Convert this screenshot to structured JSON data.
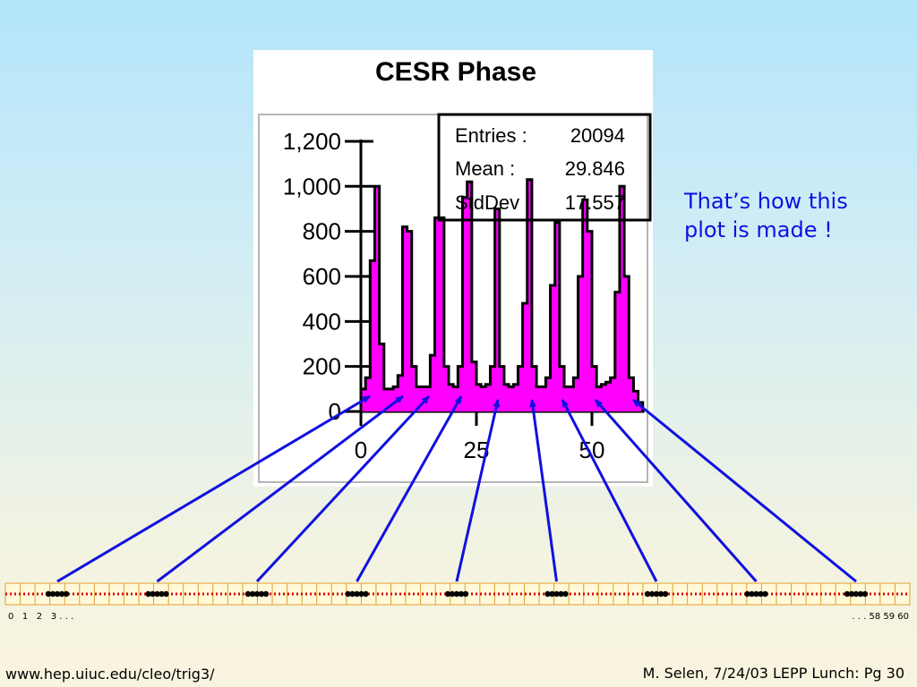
{
  "annotation": {
    "line1": "That’s how this",
    "line2": "plot is made !"
  },
  "bucket_strip": {
    "left_label": "0   1   2   3 . . .",
    "right_label": ". . . 58 59 60",
    "filled_groups": 9
  },
  "footer": {
    "url": "www.hep.uiuc.edu/cleo/trig3/",
    "credit": "M. Selen, 7/24/03 LEPP Lunch: Pg 30"
  },
  "colors": {
    "histogram_fill": "#ff00ff",
    "arrow": "#1010e0",
    "annotation_text": "#1010e0",
    "bucket_fill": "#fff9d9",
    "bucket_dot": "#dd0000"
  },
  "chart_data": {
    "type": "bar",
    "title": "CESR Phase",
    "stats": [
      {
        "label": "Entries :",
        "value": "20094"
      },
      {
        "label": "Mean :",
        "value": "29.846"
      },
      {
        "label": "StdDev :",
        "value": "17.557"
      }
    ],
    "xlim": [
      0,
      61
    ],
    "ylim": [
      0,
      1200
    ],
    "x_ticks": [
      0,
      25,
      50
    ],
    "y_ticks": [
      0,
      200,
      400,
      600,
      800,
      1000,
      1200
    ],
    "y_tick_labels": [
      "0",
      "200",
      "400",
      "600",
      "800",
      "1,000",
      "1,200"
    ],
    "grid": false,
    "legend": "top-right stats box",
    "bins": [
      {
        "x": 0,
        "y": 100
      },
      {
        "x": 1,
        "y": 150
      },
      {
        "x": 2,
        "y": 670
      },
      {
        "x": 3,
        "y": 1000
      },
      {
        "x": 4,
        "y": 300
      },
      {
        "x": 5,
        "y": 100
      },
      {
        "x": 6,
        "y": 100
      },
      {
        "x": 7,
        "y": 110
      },
      {
        "x": 8,
        "y": 160
      },
      {
        "x": 9,
        "y": 820
      },
      {
        "x": 10,
        "y": 800
      },
      {
        "x": 11,
        "y": 200
      },
      {
        "x": 12,
        "y": 110
      },
      {
        "x": 13,
        "y": 110
      },
      {
        "x": 14,
        "y": 110
      },
      {
        "x": 15,
        "y": 250
      },
      {
        "x": 16,
        "y": 860
      },
      {
        "x": 17,
        "y": 860
      },
      {
        "x": 18,
        "y": 200
      },
      {
        "x": 19,
        "y": 120
      },
      {
        "x": 20,
        "y": 110
      },
      {
        "x": 21,
        "y": 200
      },
      {
        "x": 22,
        "y": 950
      },
      {
        "x": 23,
        "y": 1020
      },
      {
        "x": 24,
        "y": 220
      },
      {
        "x": 25,
        "y": 120
      },
      {
        "x": 26,
        "y": 110
      },
      {
        "x": 27,
        "y": 120
      },
      {
        "x": 28,
        "y": 200
      },
      {
        "x": 29,
        "y": 900
      },
      {
        "x": 30,
        "y": 200
      },
      {
        "x": 31,
        "y": 120
      },
      {
        "x": 32,
        "y": 110
      },
      {
        "x": 33,
        "y": 120
      },
      {
        "x": 34,
        "y": 200
      },
      {
        "x": 35,
        "y": 480
      },
      {
        "x": 36,
        "y": 1030
      },
      {
        "x": 37,
        "y": 200
      },
      {
        "x": 38,
        "y": 110
      },
      {
        "x": 39,
        "y": 110
      },
      {
        "x": 40,
        "y": 150
      },
      {
        "x": 41,
        "y": 560
      },
      {
        "x": 42,
        "y": 840
      },
      {
        "x": 43,
        "y": 200
      },
      {
        "x": 44,
        "y": 110
      },
      {
        "x": 45,
        "y": 110
      },
      {
        "x": 46,
        "y": 150
      },
      {
        "x": 47,
        "y": 600
      },
      {
        "x": 48,
        "y": 940
      },
      {
        "x": 49,
        "y": 800
      },
      {
        "x": 50,
        "y": 200
      },
      {
        "x": 51,
        "y": 110
      },
      {
        "x": 52,
        "y": 120
      },
      {
        "x": 53,
        "y": 130
      },
      {
        "x": 54,
        "y": 150
      },
      {
        "x": 55,
        "y": 530
      },
      {
        "x": 56,
        "y": 1000
      },
      {
        "x": 57,
        "y": 600
      },
      {
        "x": 58,
        "y": 150
      },
      {
        "x": 59,
        "y": 90
      },
      {
        "x": 60,
        "y": 40
      }
    ]
  }
}
